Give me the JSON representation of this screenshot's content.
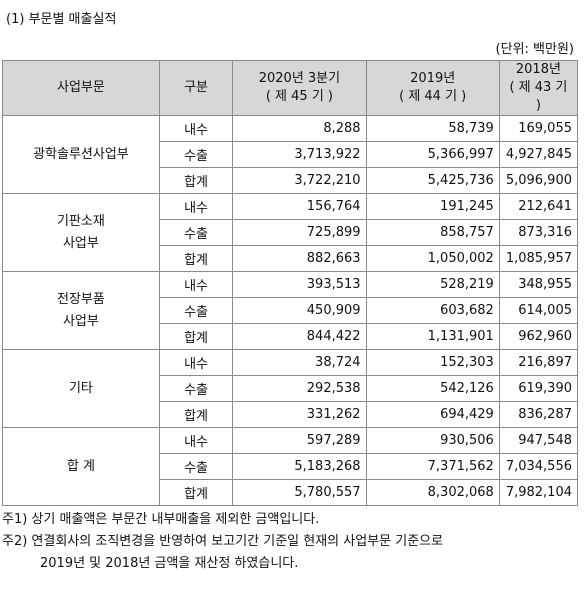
{
  "title": "(1) 부문별 매출실적",
  "unit": "(단위: 백만원)",
  "headers": {
    "segment": "사업부문",
    "kind": "구분",
    "col1_line1": "2020년 3분기",
    "col1_line2": "( 제 45 기 )",
    "col2_line1": "2019년",
    "col2_line2": "( 제 44 기 )",
    "col3_line1": "2018년",
    "col3_line2": "( 제 43 기 )"
  },
  "groups": [
    {
      "segment_lines": [
        "광학솔루션사업부"
      ],
      "rows": [
        {
          "kind": "내수",
          "v": [
            "8,288",
            "58,739",
            "169,055"
          ]
        },
        {
          "kind": "수출",
          "v": [
            "3,713,922",
            "5,366,997",
            "4,927,845"
          ]
        },
        {
          "kind": "합계",
          "v": [
            "3,722,210",
            "5,425,736",
            "5,096,900"
          ]
        }
      ]
    },
    {
      "segment_lines": [
        "기판소재",
        "사업부"
      ],
      "rows": [
        {
          "kind": "내수",
          "v": [
            "156,764",
            "191,245",
            "212,641"
          ]
        },
        {
          "kind": "수출",
          "v": [
            "725,899",
            "858,757",
            "873,316"
          ]
        },
        {
          "kind": "합계",
          "v": [
            "882,663",
            "1,050,002",
            "1,085,957"
          ]
        }
      ]
    },
    {
      "segment_lines": [
        "전장부품",
        "사업부"
      ],
      "rows": [
        {
          "kind": "내수",
          "v": [
            "393,513",
            "528,219",
            "348,955"
          ]
        },
        {
          "kind": "수출",
          "v": [
            "450,909",
            "603,682",
            "614,005"
          ]
        },
        {
          "kind": "합계",
          "v": [
            "844,422",
            "1,131,901",
            "962,960"
          ]
        }
      ]
    },
    {
      "segment_lines": [
        "기타"
      ],
      "rows": [
        {
          "kind": "내수",
          "v": [
            "38,724",
            "152,303",
            "216,897"
          ]
        },
        {
          "kind": "수출",
          "v": [
            "292,538",
            "542,126",
            "619,390"
          ]
        },
        {
          "kind": "합계",
          "v": [
            "331,262",
            "694,429",
            "836,287"
          ]
        }
      ]
    },
    {
      "segment_lines": [
        "합 계"
      ],
      "rows": [
        {
          "kind": "내수",
          "v": [
            "597,289",
            "930,506",
            "947,548"
          ]
        },
        {
          "kind": "수출",
          "v": [
            "5,183,268",
            "7,371,562",
            "7,034,556"
          ]
        },
        {
          "kind": "합계",
          "v": [
            "5,780,557",
            "8,302,068",
            "7,982,104"
          ]
        }
      ]
    }
  ],
  "notes": {
    "note1": "주1) 상기 매출액은 부문간 내부매출을 제외한 금액입니다.",
    "note2_line1": "주2) 연결회사의 조직변경을 반영하여 보고기간 기준일 현재의 사업부문 기준으로",
    "note2_line2": "2019년 및 2018년 금액을 재산정 하였습니다."
  }
}
